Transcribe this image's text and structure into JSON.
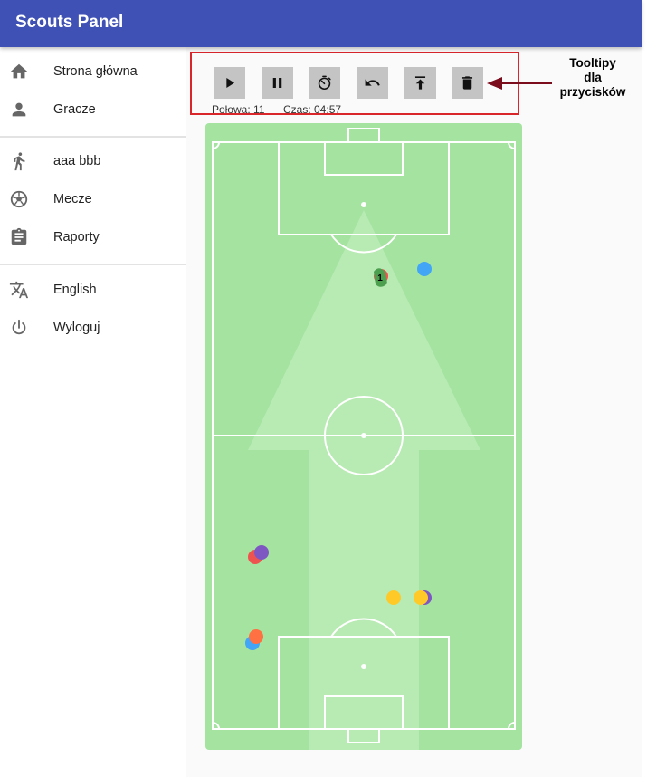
{
  "app": {
    "title": "Scouts Panel"
  },
  "sidebar": {
    "items": [
      {
        "label": "Strona główna",
        "icon": "home-icon"
      },
      {
        "label": "Gracze",
        "icon": "person-icon"
      },
      {
        "label": "aaa bbb",
        "icon": "running-person-icon"
      },
      {
        "label": "Mecze",
        "icon": "soccer-ball-icon"
      },
      {
        "label": "Raporty",
        "icon": "clipboard-icon"
      },
      {
        "label": "English",
        "icon": "translate-icon"
      },
      {
        "label": "Wyloguj",
        "icon": "power-icon"
      }
    ]
  },
  "toolbar": {
    "buttons": [
      {
        "name": "play",
        "icon": "play-icon"
      },
      {
        "name": "pause",
        "icon": "pause-icon"
      },
      {
        "name": "timer",
        "icon": "timer-icon"
      },
      {
        "name": "undo",
        "icon": "undo-icon"
      },
      {
        "name": "upload",
        "icon": "upload-icon"
      },
      {
        "name": "delete",
        "icon": "delete-icon"
      }
    ],
    "half_text": "Połowa: 11",
    "time_text": "Czas: 04:57"
  },
  "annotation": {
    "lines": [
      "Tooltipy",
      "dla",
      "przycisków"
    ],
    "color": "#7a0c1c"
  },
  "colors": {
    "appbar": "#3f51b5",
    "highlight_border": "#d9262b",
    "pitch": "#a5e3a0",
    "pitch_arrow": "#b8eab3",
    "button_bg": "#c4c4c4"
  },
  "pitch": {
    "players": [
      {
        "color": "#4c9f4f",
        "label": "1"
      },
      {
        "color": "#42a5f5"
      },
      {
        "color": "#7e57c2"
      },
      {
        "color": "#ef5350"
      },
      {
        "color": "#ffca28"
      },
      {
        "color": "#7e57c2"
      },
      {
        "color": "#ffca28"
      },
      {
        "color": "#42a5f5"
      },
      {
        "color": "#ff7043"
      }
    ]
  }
}
